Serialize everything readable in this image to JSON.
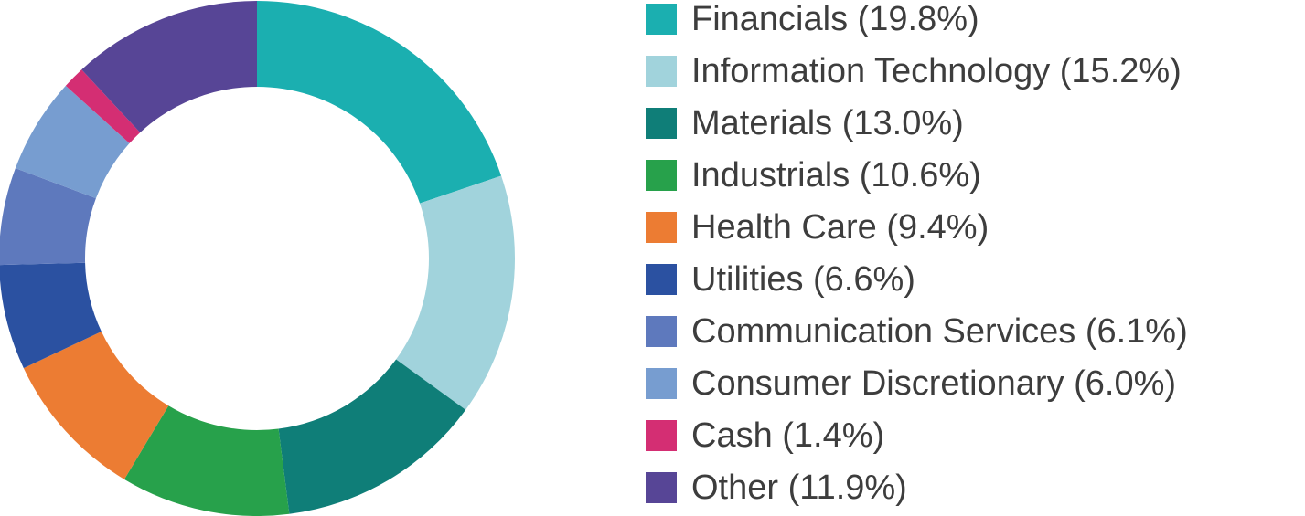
{
  "chart_data": {
    "type": "pie",
    "title": "",
    "donut": true,
    "legend_position": "right",
    "slices": [
      {
        "label": "Financials (19.8%)",
        "value": 19.8,
        "color": "#1bafb0"
      },
      {
        "label": "Information Technology (15.2%)",
        "value": 15.2,
        "color": "#a1d3dc"
      },
      {
        "label": "Materials (13.0%)",
        "value": 13.0,
        "color": "#0f7e78"
      },
      {
        "label": "Industrials (10.6%)",
        "value": 10.6,
        "color": "#27a14b"
      },
      {
        "label": "Health Care (9.4%)",
        "value": 9.4,
        "color": "#ec7c33"
      },
      {
        "label": "Utilities (6.6%)",
        "value": 6.6,
        "color": "#2b51a1"
      },
      {
        "label": "Communication Services (6.1%)",
        "value": 6.1,
        "color": "#5e79bd"
      },
      {
        "label": "Consumer Discretionary (6.0%)",
        "value": 6.0,
        "color": "#779dd0"
      },
      {
        "label": "Cash (1.4%)",
        "value": 1.4,
        "color": "#d42e73"
      },
      {
        "label": "Other (11.9%)",
        "value": 11.9,
        "color": "#574596"
      }
    ]
  }
}
